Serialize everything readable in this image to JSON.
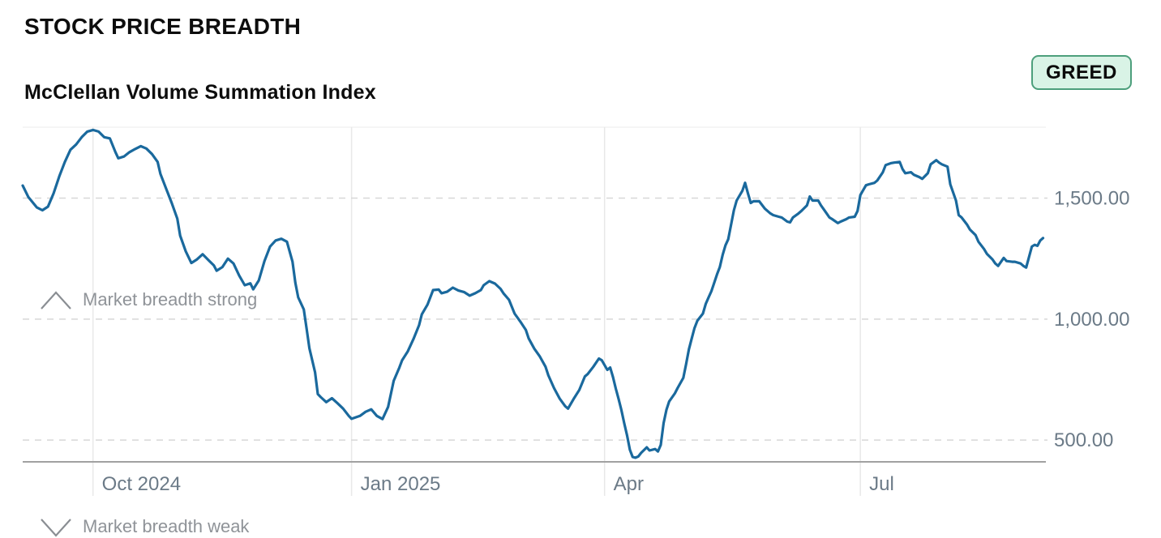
{
  "header": {
    "title": "STOCK PRICE BREADTH",
    "badge": {
      "label": "GREED",
      "bg_color": "#d9f3e6",
      "border_color": "#4d9f7c",
      "text_color": "#0a0a0a"
    }
  },
  "chart": {
    "subtitle": "McClellan Volume Summation Index",
    "annotations": {
      "strong": "Market breadth strong",
      "weak": "Market breadth weak"
    }
  },
  "chart_data": {
    "type": "line",
    "title": "McClellan Volume Summation Index",
    "xlabel": "",
    "ylabel": "",
    "x_domain": [
      "2024-09-06",
      "2025-09-05"
    ],
    "ylim": [
      410,
      1810
    ],
    "grid": {
      "vertical": "solid light gray at month ticks",
      "horizontal": "dashed light gray at value ticks"
    },
    "legend": "none",
    "x_ticks": [
      {
        "date": "2024-10-01",
        "label": "Oct 2024"
      },
      {
        "date": "2025-01-01",
        "label": "Jan 2025"
      },
      {
        "date": "2025-04-01",
        "label": "Apr"
      },
      {
        "date": "2025-07-01",
        "label": "Jul"
      }
    ],
    "y_ticks": [
      {
        "value": 500,
        "label": "500.00"
      },
      {
        "value": 1000,
        "label": "1,000.00"
      },
      {
        "value": 1500,
        "label": "1,500.00"
      }
    ],
    "colors": {
      "line": "#1a699d",
      "x_gridline": "#e8e8e8",
      "y_gridline_dashed": "#d8d8d8",
      "axis_line": "#a1a1a1",
      "plot_top_border": "#f2f2f2",
      "tick_text": "#6b7a87",
      "annotation_text": "#8f9398",
      "annotation_icon": "#8a8e93"
    },
    "series": [
      {
        "name": "McClellan Volume Summation Index",
        "points": [
          [
            "2024-09-06",
            1552
          ],
          [
            "2024-09-08",
            1505
          ],
          [
            "2024-09-11",
            1462
          ],
          [
            "2024-09-13",
            1450
          ],
          [
            "2024-09-15",
            1465
          ],
          [
            "2024-09-17",
            1520
          ],
          [
            "2024-09-19",
            1590
          ],
          [
            "2024-09-21",
            1650
          ],
          [
            "2024-09-23",
            1700
          ],
          [
            "2024-09-25",
            1722
          ],
          [
            "2024-09-27",
            1752
          ],
          [
            "2024-09-29",
            1775
          ],
          [
            "2024-10-01",
            1782
          ],
          [
            "2024-10-03",
            1775
          ],
          [
            "2024-10-05",
            1752
          ],
          [
            "2024-10-07",
            1747
          ],
          [
            "2024-10-09",
            1690
          ],
          [
            "2024-10-10",
            1665
          ],
          [
            "2024-10-12",
            1672
          ],
          [
            "2024-10-14",
            1690
          ],
          [
            "2024-10-16",
            1703
          ],
          [
            "2024-10-18",
            1715
          ],
          [
            "2024-10-20",
            1705
          ],
          [
            "2024-10-22",
            1682
          ],
          [
            "2024-10-24",
            1650
          ],
          [
            "2024-10-25",
            1600
          ],
          [
            "2024-10-27",
            1540
          ],
          [
            "2024-10-29",
            1480
          ],
          [
            "2024-10-31",
            1415
          ],
          [
            "2024-11-01",
            1345
          ],
          [
            "2024-11-03",
            1280
          ],
          [
            "2024-11-05",
            1232
          ],
          [
            "2024-11-07",
            1247
          ],
          [
            "2024-11-09",
            1268
          ],
          [
            "2024-11-11",
            1245
          ],
          [
            "2024-11-13",
            1222
          ],
          [
            "2024-11-14",
            1200
          ],
          [
            "2024-11-16",
            1215
          ],
          [
            "2024-11-18",
            1250
          ],
          [
            "2024-11-20",
            1230
          ],
          [
            "2024-11-22",
            1180
          ],
          [
            "2024-11-24",
            1140
          ],
          [
            "2024-11-26",
            1148
          ],
          [
            "2024-11-27",
            1123
          ],
          [
            "2024-11-29",
            1160
          ],
          [
            "2024-12-01",
            1240
          ],
          [
            "2024-12-03",
            1300
          ],
          [
            "2024-12-05",
            1325
          ],
          [
            "2024-12-07",
            1332
          ],
          [
            "2024-12-09",
            1320
          ],
          [
            "2024-12-11",
            1237
          ],
          [
            "2024-12-12",
            1150
          ],
          [
            "2024-12-13",
            1090
          ],
          [
            "2024-12-15",
            1040
          ],
          [
            "2024-12-16",
            960
          ],
          [
            "2024-12-17",
            880
          ],
          [
            "2024-12-19",
            780
          ],
          [
            "2024-12-20",
            690
          ],
          [
            "2024-12-21",
            678
          ],
          [
            "2024-12-23",
            657
          ],
          [
            "2024-12-25",
            673
          ],
          [
            "2024-12-27",
            652
          ],
          [
            "2024-12-29",
            630
          ],
          [
            "2024-12-31",
            600
          ],
          [
            "2025-01-01",
            588
          ],
          [
            "2025-01-04",
            600
          ],
          [
            "2025-01-06",
            617
          ],
          [
            "2025-01-08",
            627
          ],
          [
            "2025-01-10",
            600
          ],
          [
            "2025-01-12",
            587
          ],
          [
            "2025-01-14",
            637
          ],
          [
            "2025-01-16",
            745
          ],
          [
            "2025-01-18",
            800
          ],
          [
            "2025-01-19",
            830
          ],
          [
            "2025-01-21",
            867
          ],
          [
            "2025-01-23",
            917
          ],
          [
            "2025-01-25",
            975
          ],
          [
            "2025-01-26",
            1020
          ],
          [
            "2025-01-28",
            1060
          ],
          [
            "2025-01-30",
            1120
          ],
          [
            "2025-02-01",
            1122
          ],
          [
            "2025-02-02",
            1107
          ],
          [
            "2025-02-04",
            1113
          ],
          [
            "2025-02-06",
            1130
          ],
          [
            "2025-02-08",
            1118
          ],
          [
            "2025-02-10",
            1112
          ],
          [
            "2025-02-12",
            1097
          ],
          [
            "2025-02-14",
            1107
          ],
          [
            "2025-02-16",
            1120
          ],
          [
            "2025-02-17",
            1140
          ],
          [
            "2025-02-19",
            1157
          ],
          [
            "2025-02-21",
            1147
          ],
          [
            "2025-02-23",
            1125
          ],
          [
            "2025-02-24",
            1107
          ],
          [
            "2025-02-26",
            1080
          ],
          [
            "2025-02-28",
            1023
          ],
          [
            "2025-03-02",
            990
          ],
          [
            "2025-03-04",
            955
          ],
          [
            "2025-03-05",
            920
          ],
          [
            "2025-03-07",
            878
          ],
          [
            "2025-03-09",
            845
          ],
          [
            "2025-03-11",
            803
          ],
          [
            "2025-03-12",
            768
          ],
          [
            "2025-03-14",
            715
          ],
          [
            "2025-03-16",
            672
          ],
          [
            "2025-03-18",
            640
          ],
          [
            "2025-03-19",
            630
          ],
          [
            "2025-03-21",
            670
          ],
          [
            "2025-03-23",
            707
          ],
          [
            "2025-03-25",
            763
          ],
          [
            "2025-03-26",
            773
          ],
          [
            "2025-03-28",
            803
          ],
          [
            "2025-03-30",
            837
          ],
          [
            "2025-03-31",
            830
          ],
          [
            "2025-04-02",
            790
          ],
          [
            "2025-04-03",
            800
          ],
          [
            "2025-04-04",
            760
          ],
          [
            "2025-04-05",
            713
          ],
          [
            "2025-04-06",
            670
          ],
          [
            "2025-04-07",
            623
          ],
          [
            "2025-04-08",
            570
          ],
          [
            "2025-04-09",
            520
          ],
          [
            "2025-04-10",
            460
          ],
          [
            "2025-04-11",
            430
          ],
          [
            "2025-04-12",
            427
          ],
          [
            "2025-04-13",
            432
          ],
          [
            "2025-04-14",
            447
          ],
          [
            "2025-04-16",
            470
          ],
          [
            "2025-04-17",
            457
          ],
          [
            "2025-04-19",
            463
          ],
          [
            "2025-04-20",
            453
          ],
          [
            "2025-04-21",
            480
          ],
          [
            "2025-04-22",
            570
          ],
          [
            "2025-04-23",
            625
          ],
          [
            "2025-04-24",
            660
          ],
          [
            "2025-04-26",
            693
          ],
          [
            "2025-04-27",
            715
          ],
          [
            "2025-04-29",
            757
          ],
          [
            "2025-04-30",
            813
          ],
          [
            "2025-05-01",
            875
          ],
          [
            "2025-05-02",
            920
          ],
          [
            "2025-05-03",
            963
          ],
          [
            "2025-05-04",
            993
          ],
          [
            "2025-05-06",
            1023
          ],
          [
            "2025-05-07",
            1063
          ],
          [
            "2025-05-08",
            1090
          ],
          [
            "2025-05-09",
            1115
          ],
          [
            "2025-05-10",
            1150
          ],
          [
            "2025-05-11",
            1185
          ],
          [
            "2025-05-12",
            1215
          ],
          [
            "2025-05-13",
            1265
          ],
          [
            "2025-05-14",
            1305
          ],
          [
            "2025-05-15",
            1330
          ],
          [
            "2025-05-16",
            1390
          ],
          [
            "2025-05-17",
            1450
          ],
          [
            "2025-05-18",
            1490
          ],
          [
            "2025-05-20",
            1530
          ],
          [
            "2025-05-21",
            1563
          ],
          [
            "2025-05-22",
            1520
          ],
          [
            "2025-05-23",
            1480
          ],
          [
            "2025-05-24",
            1487
          ],
          [
            "2025-05-26",
            1487
          ],
          [
            "2025-05-28",
            1457
          ],
          [
            "2025-05-30",
            1437
          ],
          [
            "2025-05-31",
            1430
          ],
          [
            "2025-06-02",
            1423
          ],
          [
            "2025-06-03",
            1420
          ],
          [
            "2025-06-05",
            1403
          ],
          [
            "2025-06-06",
            1400
          ],
          [
            "2025-06-07",
            1420
          ],
          [
            "2025-06-09",
            1437
          ],
          [
            "2025-06-10",
            1447
          ],
          [
            "2025-06-12",
            1470
          ],
          [
            "2025-06-13",
            1507
          ],
          [
            "2025-06-14",
            1490
          ],
          [
            "2025-06-16",
            1490
          ],
          [
            "2025-06-17",
            1470
          ],
          [
            "2025-06-19",
            1437
          ],
          [
            "2025-06-20",
            1420
          ],
          [
            "2025-06-21",
            1413
          ],
          [
            "2025-06-23",
            1397
          ],
          [
            "2025-06-24",
            1403
          ],
          [
            "2025-06-26",
            1413
          ],
          [
            "2025-06-27",
            1420
          ],
          [
            "2025-06-29",
            1423
          ],
          [
            "2025-06-30",
            1447
          ],
          [
            "2025-07-01",
            1513
          ],
          [
            "2025-07-03",
            1553
          ],
          [
            "2025-07-04",
            1557
          ],
          [
            "2025-07-06",
            1563
          ],
          [
            "2025-07-07",
            1573
          ],
          [
            "2025-07-09",
            1607
          ],
          [
            "2025-07-10",
            1637
          ],
          [
            "2025-07-12",
            1645
          ],
          [
            "2025-07-13",
            1647
          ],
          [
            "2025-07-15",
            1650
          ],
          [
            "2025-07-16",
            1620
          ],
          [
            "2025-07-17",
            1603
          ],
          [
            "2025-07-19",
            1607
          ],
          [
            "2025-07-20",
            1597
          ],
          [
            "2025-07-22",
            1587
          ],
          [
            "2025-07-23",
            1580
          ],
          [
            "2025-07-25",
            1603
          ],
          [
            "2025-07-26",
            1640
          ],
          [
            "2025-07-28",
            1657
          ],
          [
            "2025-07-29",
            1647
          ],
          [
            "2025-07-30",
            1640
          ],
          [
            "2025-08-01",
            1630
          ],
          [
            "2025-08-02",
            1557
          ],
          [
            "2025-08-04",
            1490
          ],
          [
            "2025-08-05",
            1430
          ],
          [
            "2025-08-06",
            1420
          ],
          [
            "2025-08-08",
            1390
          ],
          [
            "2025-08-09",
            1370
          ],
          [
            "2025-08-11",
            1347
          ],
          [
            "2025-08-12",
            1320
          ],
          [
            "2025-08-14",
            1290
          ],
          [
            "2025-08-15",
            1270
          ],
          [
            "2025-08-17",
            1247
          ],
          [
            "2025-08-18",
            1230
          ],
          [
            "2025-08-19",
            1220
          ],
          [
            "2025-08-21",
            1253
          ],
          [
            "2025-08-22",
            1240
          ],
          [
            "2025-08-24",
            1237
          ],
          [
            "2025-08-25",
            1237
          ],
          [
            "2025-08-27",
            1230
          ],
          [
            "2025-08-28",
            1220
          ],
          [
            "2025-08-29",
            1213
          ],
          [
            "2025-08-31",
            1300
          ],
          [
            "2025-09-01",
            1307
          ],
          [
            "2025-09-02",
            1303
          ],
          [
            "2025-09-03",
            1325
          ],
          [
            "2025-09-04",
            1335
          ]
        ]
      }
    ]
  }
}
